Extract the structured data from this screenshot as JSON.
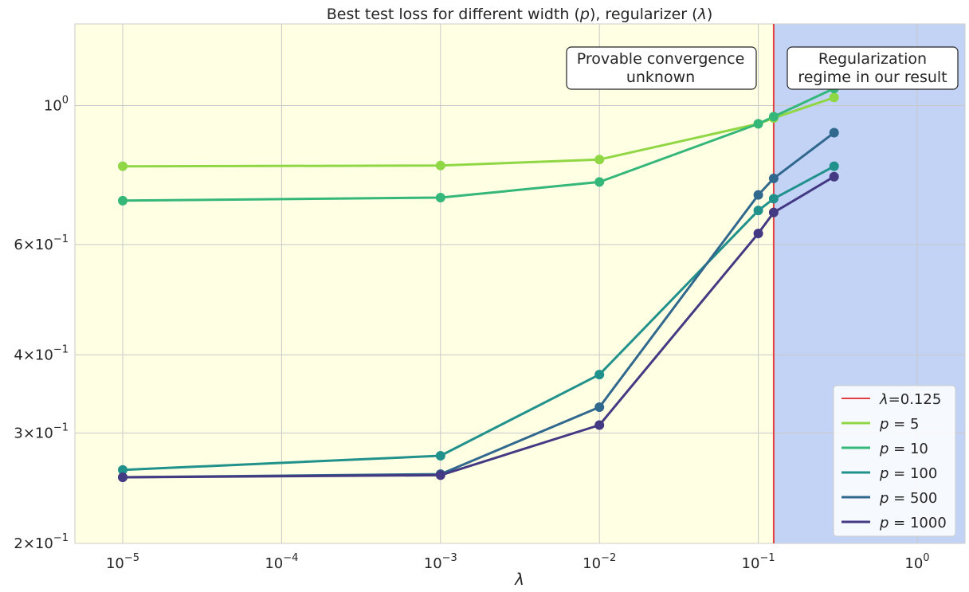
{
  "chart_data": {
    "type": "line",
    "title_parts": [
      "Best test loss for different width (",
      "p",
      "), regularizer (",
      "λ",
      ")"
    ],
    "xlabel": "λ",
    "ylabel": "",
    "x_scale": "log",
    "y_scale": "log",
    "xlim": [
      5e-06,
      2.0
    ],
    "ylim": [
      0.2,
      1.35
    ],
    "grid": true,
    "x_ticks": [
      {
        "value": 1e-05,
        "base": "10",
        "exp": "−5"
      },
      {
        "value": 0.0001,
        "base": "10",
        "exp": "−4"
      },
      {
        "value": 0.001,
        "base": "10",
        "exp": "−3"
      },
      {
        "value": 0.01,
        "base": "10",
        "exp": "−2"
      },
      {
        "value": 0.1,
        "base": "10",
        "exp": "−1"
      },
      {
        "value": 1,
        "base": "10",
        "exp": "0"
      }
    ],
    "y_ticks": [
      {
        "value": 1.0,
        "mant": "",
        "base": "10",
        "exp": "0"
      },
      {
        "value": 0.6,
        "mant": "6×",
        "base": "10",
        "exp": "−1"
      },
      {
        "value": 0.4,
        "mant": "4×",
        "base": "10",
        "exp": "−1"
      },
      {
        "value": 0.3,
        "mant": "3×",
        "base": "10",
        "exp": "−1"
      },
      {
        "value": 0.2,
        "mant": "2×",
        "base": "10",
        "exp": "−1"
      }
    ],
    "regions": [
      {
        "from": 5e-06,
        "to": 0.125,
        "color": "#ffffe3"
      },
      {
        "from": 0.125,
        "to": 2.0,
        "color": "#c2d3f6"
      }
    ],
    "annotations": [
      {
        "lines": [
          "Provable convergence",
          "unknown"
        ],
        "region": "left"
      },
      {
        "lines": [
          "Regularization",
          "regime in our result"
        ],
        "region": "right"
      }
    ],
    "vline": {
      "x": 0.125,
      "label": "λ=0.125",
      "color": "#e04040"
    },
    "x": [
      1e-05,
      0.001,
      0.01,
      0.1,
      0.125,
      0.3
    ],
    "series": [
      {
        "name": "p = 5",
        "color": "#8fd744",
        "values": [
          0.8,
          0.802,
          0.82,
          0.935,
          0.955,
          1.03
        ]
      },
      {
        "name": "p = 10",
        "color": "#35b779",
        "values": [
          0.705,
          0.713,
          0.755,
          0.935,
          0.96,
          1.065
        ]
      },
      {
        "name": "p = 100",
        "color": "#21918c",
        "values": [
          0.262,
          0.276,
          0.372,
          0.68,
          0.71,
          0.8
        ]
      },
      {
        "name": "p = 500",
        "color": "#31688e",
        "values": [
          0.255,
          0.258,
          0.33,
          0.72,
          0.765,
          0.905
        ]
      },
      {
        "name": "p = 1000",
        "color": "#443983",
        "values": [
          0.255,
          0.257,
          0.309,
          0.625,
          0.675,
          0.77
        ]
      }
    ],
    "legend_position": "lower-right",
    "legend": [
      {
        "prefix": "",
        "label": "λ=0.125",
        "color": "#e04040"
      },
      {
        "prefix": "p",
        "label": " =  5",
        "color": "#8fd744"
      },
      {
        "prefix": "p",
        "label": " =  10",
        "color": "#35b779"
      },
      {
        "prefix": "p",
        "label": " =  100",
        "color": "#21918c"
      },
      {
        "prefix": "p",
        "label": " =  500",
        "color": "#31688e"
      },
      {
        "prefix": "p",
        "label": " =  1000",
        "color": "#443983"
      }
    ]
  }
}
